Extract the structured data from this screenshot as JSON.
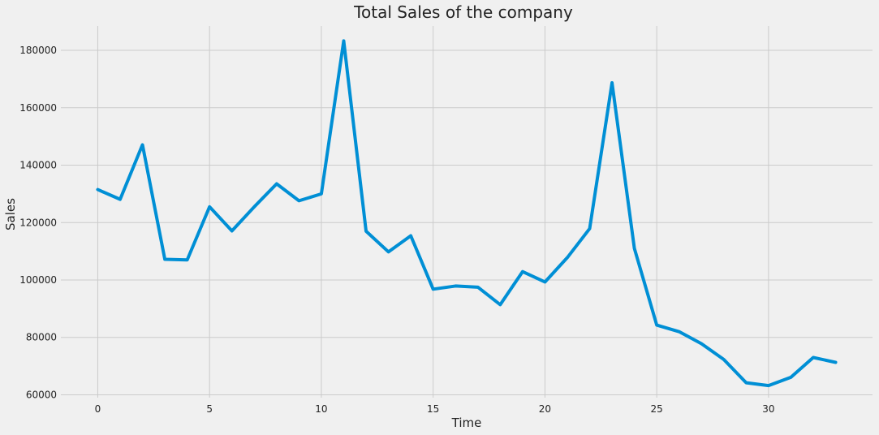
{
  "chart_data": {
    "type": "line",
    "title": "Total Sales of the company",
    "xlabel": "Time",
    "ylabel": "Sales",
    "xlim": [
      -1.65,
      34.65
    ],
    "ylim": [
      59000,
      188500
    ],
    "xticks": [
      0,
      5,
      10,
      15,
      20,
      25,
      30
    ],
    "yticks": [
      60000,
      80000,
      100000,
      120000,
      140000,
      160000,
      180000
    ],
    "grid": true,
    "x": [
      0,
      1,
      2,
      3,
      4,
      5,
      6,
      7,
      8,
      9,
      10,
      11,
      12,
      13,
      14,
      15,
      16,
      17,
      18,
      19,
      20,
      21,
      22,
      23,
      24,
      25,
      26,
      27,
      28,
      29,
      30,
      31,
      32,
      33
    ],
    "series": [
      {
        "color": "#008fd5",
        "values": [
          131500,
          128100,
          147100,
          107200,
          107000,
          125500,
          117100,
          125500,
          133500,
          127600,
          130000,
          183300,
          117000,
          109800,
          115400,
          96800,
          97900,
          97500,
          91400,
          102900,
          99300,
          107800,
          117900,
          168700,
          111000,
          84300,
          82000,
          77800,
          72300,
          64200,
          63200,
          66100,
          73000,
          71300
        ]
      }
    ]
  }
}
